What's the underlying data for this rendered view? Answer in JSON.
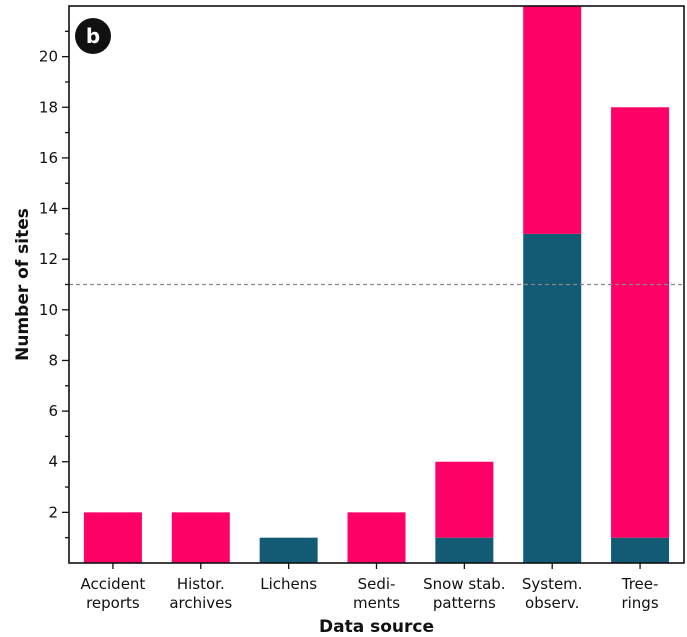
{
  "panel_label": "b",
  "colors": {
    "bottom": "#135b74",
    "top": "#ff0066",
    "reference_line": "#888888"
  },
  "chart_data": {
    "type": "bar",
    "stacked": true,
    "categories": [
      [
        "Accident",
        "reports"
      ],
      [
        "Histor.",
        "archives"
      ],
      [
        "Lichens"
      ],
      [
        "Sedi-",
        "ments"
      ],
      [
        "Snow stab.",
        "patterns"
      ],
      [
        "System.",
        "observ."
      ],
      [
        "Tree-",
        "rings"
      ]
    ],
    "series": [
      {
        "values": [
          0,
          0,
          1,
          0,
          1,
          13,
          1
        ]
      },
      {
        "values": [
          2,
          2,
          0,
          2,
          3,
          9,
          17
        ]
      }
    ],
    "xlabel": "Data source",
    "ylabel": "Number of sites",
    "ylim": [
      0,
      22
    ],
    "yticks": [
      2,
      4,
      6,
      8,
      10,
      12,
      14,
      16,
      18,
      20
    ],
    "reference_line": 11,
    "grid": false,
    "legend": "none"
  }
}
